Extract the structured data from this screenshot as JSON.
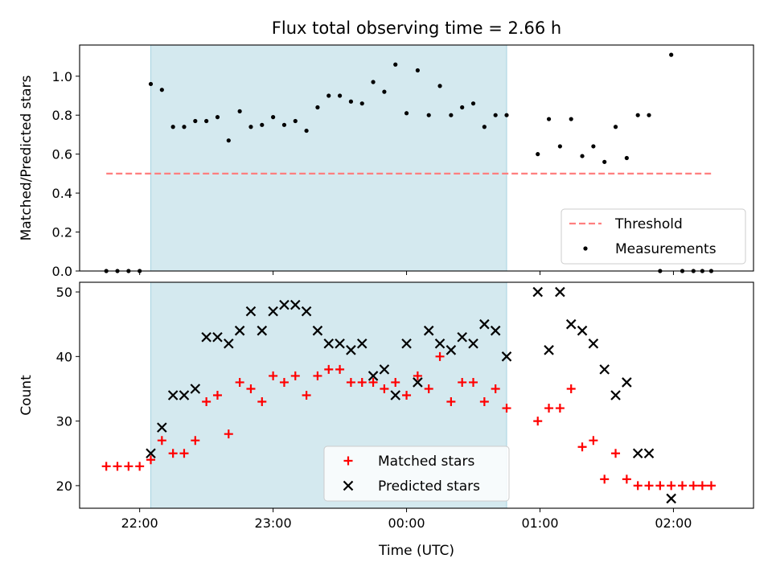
{
  "title": "Flux total observing time = 2.66 h",
  "colors": {
    "threshold": "#ff7f7f",
    "measurement": "#000000",
    "matched": "#ff0000",
    "predicted": "#000000",
    "shade": "#d4e9ef",
    "shade_edge": "#a8d4e2"
  },
  "chart_data": [
    {
      "type": "scatter",
      "ylabel": "Matched/Predicted stars",
      "xlabel": "",
      "x_axis": "time",
      "xlim": [
        "21:33",
        "02:36"
      ],
      "ylim": [
        0,
        1.16
      ],
      "yticks": [
        0.0,
        0.2,
        0.4,
        0.6,
        0.8,
        1.0
      ],
      "ytick_labels": [
        "0.0",
        "0.2",
        "0.4",
        "0.6",
        "0.8",
        "1.0"
      ],
      "xticks": [
        "22:00",
        "23:00",
        "00:00",
        "01:00",
        "02:00"
      ],
      "shaded_interval": [
        "22:05",
        "00:45"
      ],
      "legend": {
        "placement": "lower right",
        "entries": [
          "Threshold",
          "Measurements"
        ]
      },
      "threshold": {
        "name": "Threshold",
        "y": 0.5,
        "x_range": [
          "21:45",
          "02:18"
        ]
      },
      "series": [
        {
          "name": "Measurements",
          "x": [
            "21:45",
            "21:50",
            "21:55",
            "22:00",
            "22:05",
            "22:10",
            "22:15",
            "22:20",
            "22:25",
            "22:30",
            "22:35",
            "22:40",
            "22:45",
            "22:50",
            "22:55",
            "23:00",
            "23:05",
            "23:10",
            "23:15",
            "23:20",
            "23:25",
            "23:30",
            "23:35",
            "23:40",
            "23:45",
            "23:50",
            "23:55",
            "00:00",
            "00:05",
            "00:10",
            "00:15",
            "00:20",
            "00:25",
            "00:30",
            "00:35",
            "00:40",
            "00:45",
            "00:59",
            "01:04",
            "01:09",
            "01:14",
            "01:19",
            "01:24",
            "01:29",
            "01:34",
            "01:39",
            "01:44",
            "01:49",
            "01:54",
            "01:59",
            "02:04",
            "02:09",
            "02:13",
            "02:17"
          ],
          "y": [
            0,
            0,
            0,
            0,
            0.96,
            0.93,
            0.74,
            0.74,
            0.77,
            0.77,
            0.79,
            0.67,
            0.82,
            0.74,
            0.75,
            0.79,
            0.75,
            0.77,
            0.72,
            0.84,
            0.9,
            0.9,
            0.87,
            0.86,
            0.97,
            0.92,
            1.06,
            0.81,
            1.03,
            0.8,
            0.95,
            0.8,
            0.84,
            0.86,
            0.74,
            0.8,
            0.8,
            0.6,
            0.78,
            0.64,
            0.78,
            0.59,
            0.64,
            0.56,
            0.74,
            0.58,
            0.8,
            0.8,
            0,
            1.11,
            0,
            0,
            0,
            0
          ]
        }
      ]
    },
    {
      "type": "scatter",
      "ylabel": "Count",
      "xlabel": "Time (UTC)",
      "x_axis": "time",
      "xlim": [
        "21:33",
        "02:36"
      ],
      "ylim": [
        16.5,
        51.5
      ],
      "yticks": [
        20,
        30,
        40,
        50
      ],
      "ytick_labels": [
        "20",
        "30",
        "40",
        "50"
      ],
      "xticks": [
        "22:00",
        "23:00",
        "00:00",
        "01:00",
        "02:00"
      ],
      "xtick_labels": [
        "22:00",
        "23:00",
        "00:00",
        "01:00",
        "02:00"
      ],
      "shaded_interval": [
        "22:05",
        "00:45"
      ],
      "legend": {
        "placement": "lower center",
        "entries": [
          "Matched stars",
          "Predicted stars"
        ]
      },
      "series": [
        {
          "name": "Matched stars",
          "marker": "plus",
          "x": [
            "21:45",
            "21:50",
            "21:55",
            "22:00",
            "22:05",
            "22:10",
            "22:15",
            "22:20",
            "22:25",
            "22:30",
            "22:35",
            "22:40",
            "22:45",
            "22:50",
            "22:55",
            "23:00",
            "23:05",
            "23:10",
            "23:15",
            "23:20",
            "23:25",
            "23:30",
            "23:35",
            "23:40",
            "23:45",
            "23:50",
            "23:55",
            "00:00",
            "00:05",
            "00:10",
            "00:15",
            "00:20",
            "00:25",
            "00:30",
            "00:35",
            "00:40",
            "00:45",
            "00:59",
            "01:04",
            "01:09",
            "01:14",
            "01:19",
            "01:24",
            "01:29",
            "01:34",
            "01:39",
            "01:44",
            "01:49",
            "01:54",
            "01:59",
            "02:04",
            "02:09",
            "02:13",
            "02:17"
          ],
          "y": [
            23,
            23,
            23,
            23,
            24,
            27,
            25,
            25,
            27,
            33,
            34,
            28,
            36,
            35,
            33,
            37,
            36,
            37,
            34,
            37,
            38,
            38,
            36,
            36,
            36,
            35,
            36,
            34,
            37,
            35,
            40,
            33,
            36,
            36,
            33,
            35,
            32,
            30,
            32,
            32,
            35,
            26,
            27,
            21,
            25,
            21,
            20,
            20,
            20,
            20,
            20,
            20,
            20,
            20
          ]
        },
        {
          "name": "Predicted stars",
          "marker": "x",
          "x": [
            "22:05",
            "22:10",
            "22:15",
            "22:20",
            "22:25",
            "22:30",
            "22:35",
            "22:40",
            "22:45",
            "22:50",
            "22:55",
            "23:00",
            "23:05",
            "23:10",
            "23:15",
            "23:20",
            "23:25",
            "23:30",
            "23:35",
            "23:40",
            "23:45",
            "23:50",
            "23:55",
            "00:00",
            "00:05",
            "00:10",
            "00:15",
            "00:20",
            "00:25",
            "00:30",
            "00:35",
            "00:40",
            "00:45",
            "00:59",
            "01:04",
            "01:09",
            "01:14",
            "01:19",
            "01:24",
            "01:29",
            "01:34",
            "01:39",
            "01:44",
            "01:49",
            "01:59"
          ],
          "y": [
            25,
            29,
            34,
            34,
            35,
            43,
            43,
            42,
            44,
            47,
            44,
            47,
            48,
            48,
            47,
            44,
            42,
            42,
            41,
            42,
            37,
            38,
            34,
            42,
            36,
            44,
            42,
            41,
            43,
            42,
            45,
            44,
            40,
            50,
            41,
            50,
            45,
            44,
            42,
            38,
            34,
            36,
            25,
            25,
            18
          ]
        }
      ]
    }
  ]
}
